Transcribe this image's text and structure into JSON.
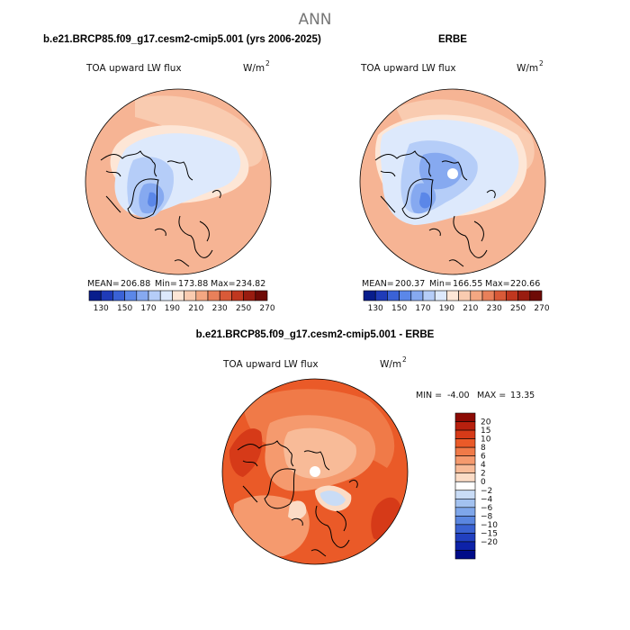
{
  "page_title": "ANN",
  "chart_data": [
    {
      "type": "heatmap",
      "projection": "north-polar-stereographic",
      "title": "b.e21.BRCP85.f09_g17.cesm2-cmip5.001 (yrs 2006-2025)",
      "variable_label": "TOA upward LW flux",
      "units": "W/m",
      "units_sup": "2",
      "stats": {
        "mean_label": "MEAN=",
        "mean": "206.88",
        "min_label": "Min=",
        "min": "173.88",
        "max_label": "Max=",
        "max": "234.82"
      },
      "colorbar_ticks": [
        "130",
        "150",
        "170",
        "190",
        "210",
        "230",
        "250",
        "270"
      ],
      "colorbar_colors": [
        "#081d8c",
        "#1f3bb8",
        "#3a62d6",
        "#5b87e8",
        "#86a9f0",
        "#b5cdf8",
        "#dde9fc",
        "#fde6d6",
        "#f9cbb0",
        "#f3a782",
        "#e8805a",
        "#d95a38",
        "#c0371f",
        "#991c10",
        "#6e0a06"
      ]
    },
    {
      "type": "heatmap",
      "projection": "north-polar-stereographic",
      "title": "ERBE",
      "variable_label": "TOA upward LW flux",
      "units": "W/m",
      "units_sup": "2",
      "stats": {
        "mean_label": "MEAN=",
        "mean": "200.37",
        "min_label": "Min=",
        "min": "166.55",
        "max_label": "Max=",
        "max": "220.66"
      },
      "colorbar_ticks": [
        "130",
        "150",
        "170",
        "190",
        "210",
        "230",
        "250",
        "270"
      ],
      "colorbar_colors": [
        "#081d8c",
        "#1f3bb8",
        "#3a62d6",
        "#5b87e8",
        "#86a9f0",
        "#b5cdf8",
        "#dde9fc",
        "#fde6d6",
        "#f9cbb0",
        "#f3a782",
        "#e8805a",
        "#d95a38",
        "#c0371f",
        "#991c10",
        "#6e0a06"
      ]
    },
    {
      "type": "heatmap",
      "projection": "north-polar-stereographic",
      "title": "b.e21.BRCP85.f09_g17.cesm2-cmip5.001 - ERBE",
      "variable_label": "TOA upward LW flux",
      "units": "W/m",
      "units_sup": "2",
      "stats": {
        "min_label": "MIN =",
        "min": "-4.00",
        "max_label": "MAX =",
        "max": "13.35"
      },
      "colorbar_orientation": "vertical",
      "colorbar_ticks": [
        "20",
        "15",
        "10",
        "8",
        "6",
        "4",
        "2",
        "0",
        "−2",
        "−4",
        "−6",
        "−8",
        "−10",
        "−15",
        "−20"
      ],
      "colorbar_colors": [
        "#8c0a04",
        "#b8200e",
        "#d63a18",
        "#ea5a28",
        "#f07a48",
        "#f59a6e",
        "#f8bb98",
        "#fbdcc6",
        "#ffffff",
        "#c9dcf6",
        "#a3c2f0",
        "#7ea6ea",
        "#5a86e0",
        "#3a62d2",
        "#2140c0",
        "#0d22a8",
        "#000c88"
      ]
    }
  ]
}
